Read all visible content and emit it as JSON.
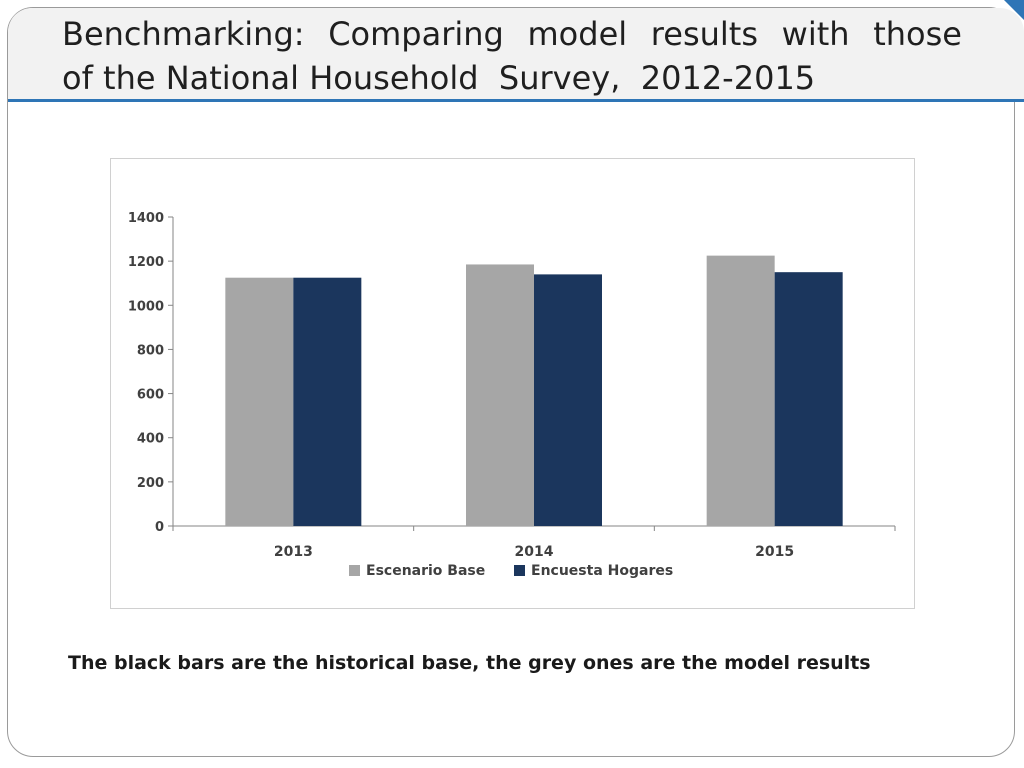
{
  "slide": {
    "title_line1": [
      "Benchmarking:",
      "Comparing",
      "model",
      "results",
      "with",
      "those"
    ],
    "title_line2": "of the National Household  Survey,  2012-2015",
    "caption": "The black bars are the historical base, the grey ones are the model results",
    "accent_color": "#2e75b6"
  },
  "chart_data": {
    "type": "bar",
    "categories": [
      "2013",
      "2014",
      "2015"
    ],
    "series": [
      {
        "name": "Escenario Base",
        "values": [
          1125,
          1185,
          1225
        ],
        "color": "#a6a6a6"
      },
      {
        "name": "Encuesta Hogares",
        "values": [
          1125,
          1140,
          1150
        ],
        "color": "#1b365d"
      }
    ],
    "ylim": [
      0,
      1400
    ],
    "yticks": [
      0,
      200,
      400,
      600,
      800,
      1000,
      1200,
      1400
    ],
    "grid": false,
    "legend_position": "bottom"
  }
}
